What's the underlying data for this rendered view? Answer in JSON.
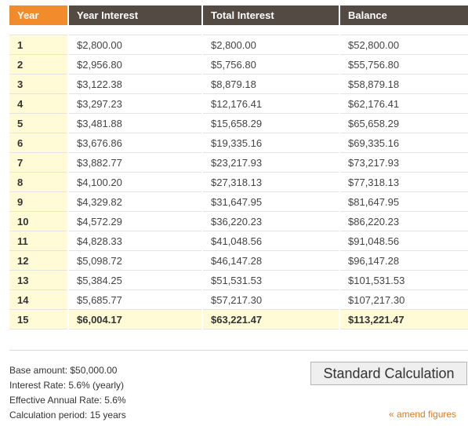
{
  "table": {
    "headers": {
      "year": "Year",
      "year_interest": "Year Interest",
      "total_interest": "Total Interest",
      "balance": "Balance"
    },
    "rows": [
      {
        "year": "1",
        "year_interest": "$2,800.00",
        "total_interest": "$2,800.00",
        "balance": "$52,800.00"
      },
      {
        "year": "2",
        "year_interest": "$2,956.80",
        "total_interest": "$5,756.80",
        "balance": "$55,756.80"
      },
      {
        "year": "3",
        "year_interest": "$3,122.38",
        "total_interest": "$8,879.18",
        "balance": "$58,879.18"
      },
      {
        "year": "4",
        "year_interest": "$3,297.23",
        "total_interest": "$12,176.41",
        "balance": "$62,176.41"
      },
      {
        "year": "5",
        "year_interest": "$3,481.88",
        "total_interest": "$15,658.29",
        "balance": "$65,658.29"
      },
      {
        "year": "6",
        "year_interest": "$3,676.86",
        "total_interest": "$19,335.16",
        "balance": "$69,335.16"
      },
      {
        "year": "7",
        "year_interest": "$3,882.77",
        "total_interest": "$23,217.93",
        "balance": "$73,217.93"
      },
      {
        "year": "8",
        "year_interest": "$4,100.20",
        "total_interest": "$27,318.13",
        "balance": "$77,318.13"
      },
      {
        "year": "9",
        "year_interest": "$4,329.82",
        "total_interest": "$31,647.95",
        "balance": "$81,647.95"
      },
      {
        "year": "10",
        "year_interest": "$4,572.29",
        "total_interest": "$36,220.23",
        "balance": "$86,220.23"
      },
      {
        "year": "11",
        "year_interest": "$4,828.33",
        "total_interest": "$41,048.56",
        "balance": "$91,048.56"
      },
      {
        "year": "12",
        "year_interest": "$5,098.72",
        "total_interest": "$46,147.28",
        "balance": "$96,147.28"
      },
      {
        "year": "13",
        "year_interest": "$5,384.25",
        "total_interest": "$51,531.53",
        "balance": "$101,531.53"
      },
      {
        "year": "14",
        "year_interest": "$5,685.77",
        "total_interest": "$57,217.30",
        "balance": "$107,217.30"
      }
    ],
    "final_row": {
      "year": "15",
      "year_interest": "$6,004.17",
      "total_interest": "$63,221.47",
      "balance": "$113,221.47"
    }
  },
  "summary": {
    "base_amount": "Base amount: $50,000.00",
    "interest_rate": "Interest Rate: 5.6% (yearly)",
    "effective_rate": "Effective Annual Rate: 5.6%",
    "period": "Calculation period: 15 years"
  },
  "actions": {
    "standard_calculation_label": "Standard Calculation",
    "amend_figures_label": "« amend figures"
  },
  "colors": {
    "header_bg": "#534a43",
    "year_header_bg": "#f28b2b",
    "year_cell_bg": "#fffbd6",
    "total_row_bg": "#fffbd6",
    "link": "#e07a1d"
  }
}
